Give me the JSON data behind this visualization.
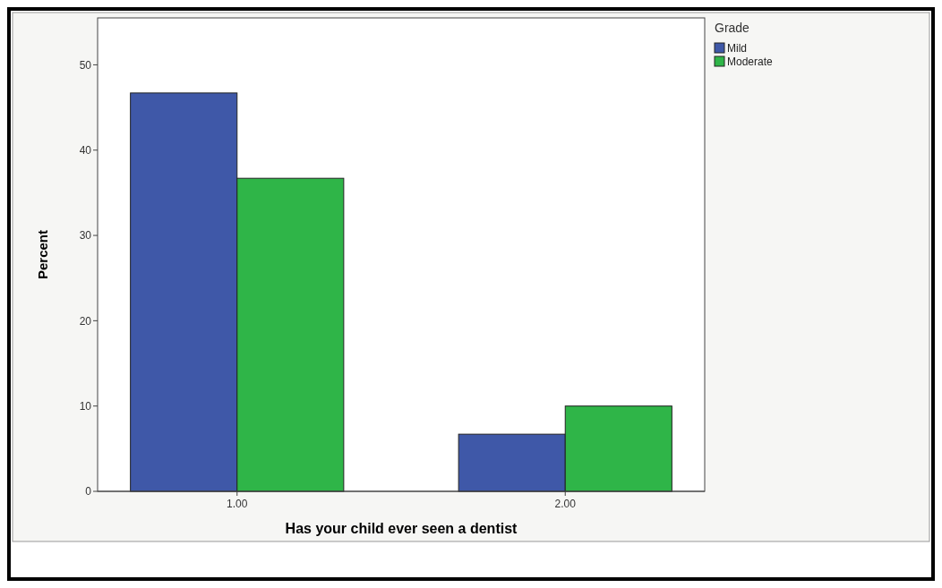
{
  "chart_data": {
    "type": "bar",
    "xlabel": "Has your child ever seen a dentist",
    "ylabel": "Percent",
    "legend_title": "Grade",
    "categories": [
      "1.00",
      "2.00"
    ],
    "series": [
      {
        "name": "Mild",
        "color": "#3f58a8",
        "values": [
          46.7,
          6.7
        ]
      },
      {
        "name": "Moderate",
        "color": "#2fb548",
        "values": [
          36.7,
          10
        ]
      }
    ],
    "ylim": [
      0,
      55.5
    ],
    "yticks": [
      0,
      10,
      20,
      30,
      40,
      50
    ],
    "legend": "top right",
    "grid": false
  }
}
